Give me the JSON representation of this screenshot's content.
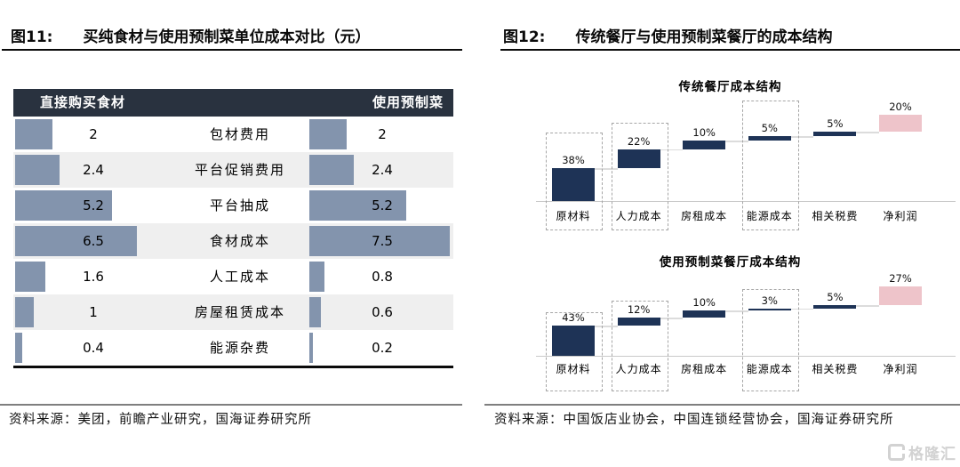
{
  "left_panel": {
    "figure_label": "图11:",
    "title": "买纯食材与使用预制菜单位成本对比（元）",
    "source": "资料来源：美团，前瞻产业研究，国海证券研究所"
  },
  "right_panel": {
    "figure_label": "图12:",
    "title": "传统餐厅与使用预制菜餐厅的成本结构",
    "source": "资料来源：中国饭店业协会，中国连锁经营协会，国海证券研究所"
  },
  "watermark": {
    "text": "格隆汇"
  },
  "colors": {
    "table_header_bg": "#29323f",
    "table_bar": "#8394ad",
    "row_stripe": "#efefef",
    "waterfall_bar": "#1e3356",
    "waterfall_highlight": "#eec4ca",
    "dashed_box": "#a6a6a6",
    "connector": "#dcdcdc",
    "source_rule": "#7f7f7f",
    "watermark_gray": "#d2d2d2"
  },
  "chart_data": [
    {
      "type": "bar",
      "orientation": "horizontal",
      "title": "买纯食材与使用预制菜单位成本对比（元）",
      "unit": "元",
      "categories": [
        "包材费用",
        "平台促销费用",
        "平台抽成",
        "食材成本",
        "人工成本",
        "房屋租赁成本",
        "能源杂费"
      ],
      "series": [
        {
          "name": "直接购买食材",
          "values": [
            2,
            2.4,
            5.2,
            6.5,
            1.6,
            1,
            0.4
          ]
        },
        {
          "name": "使用预制菜",
          "values": [
            2,
            2.4,
            5.2,
            7.5,
            0.8,
            0.6,
            0.2
          ]
        }
      ],
      "xlim": [
        0,
        8
      ],
      "grid": false
    },
    {
      "type": "waterfall",
      "title": "传统餐厅成本结构",
      "categories": [
        "原材料",
        "人力成本",
        "房租成本",
        "能源成本",
        "相关税费",
        "净利润"
      ],
      "values": [
        38,
        22,
        10,
        5,
        5,
        20
      ],
      "labels": [
        "38%",
        "22%",
        "10%",
        "5%",
        "5%",
        "20%"
      ],
      "highlight_index": 5,
      "dashed_box_indices": [
        0,
        1,
        3
      ],
      "ylim": [
        0,
        100
      ],
      "grid": false
    },
    {
      "type": "waterfall",
      "title": "使用预制菜餐厅成本结构",
      "categories": [
        "原材料",
        "人力成本",
        "房租成本",
        "能源成本",
        "相关税费",
        "净利润"
      ],
      "values": [
        43,
        12,
        10,
        3,
        5,
        27
      ],
      "labels": [
        "43%",
        "12%",
        "10%",
        "3%",
        "5%",
        "27%"
      ],
      "highlight_index": 5,
      "dashed_box_indices": [
        0,
        1,
        3
      ],
      "ylim": [
        0,
        100
      ],
      "grid": false
    }
  ]
}
